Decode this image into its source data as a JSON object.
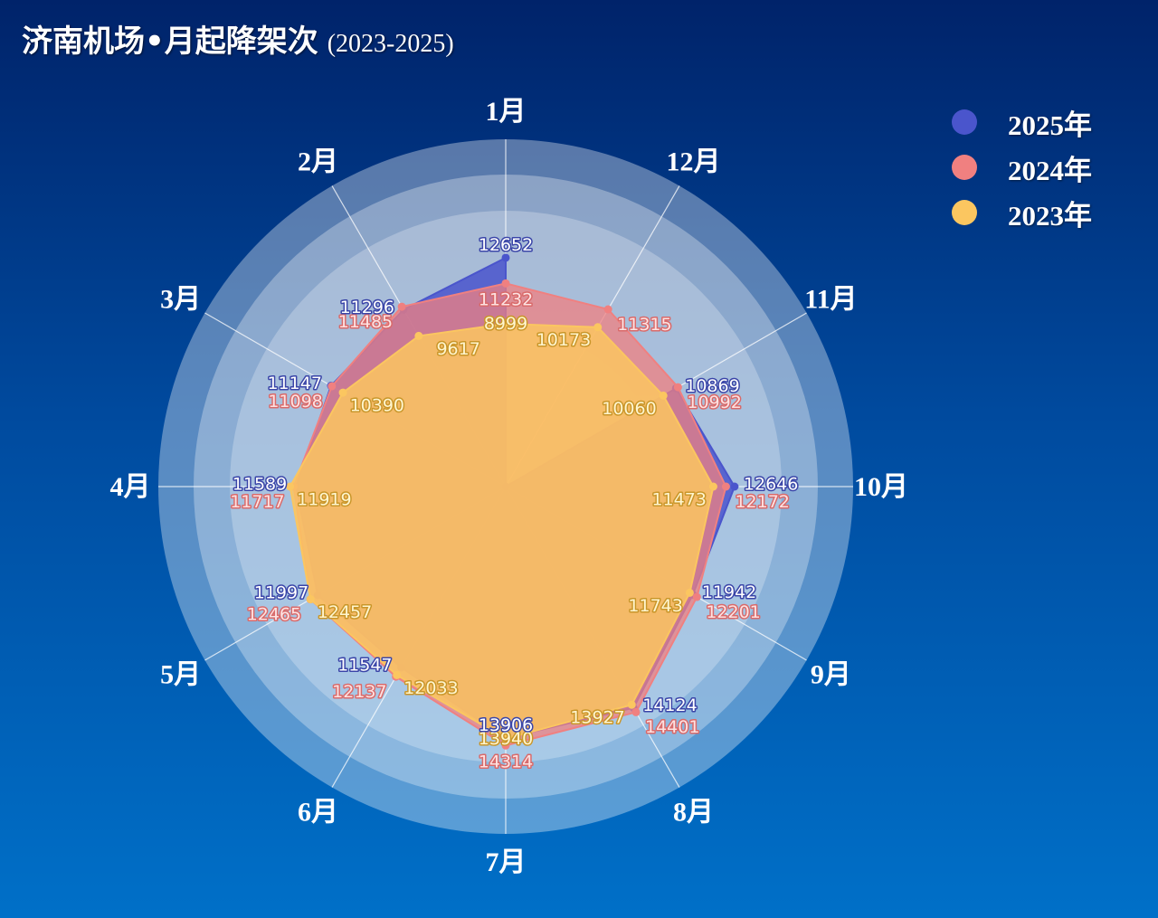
{
  "title": {
    "main": "济南机场•月起降架次",
    "sub": "(2023-2025)"
  },
  "watermark": "",
  "colors": {
    "y2025": "#4a55cc",
    "y2024": "#f08080",
    "y2023": "#fbc660"
  },
  "legend": [
    {
      "label": "2025年",
      "color": "#4a55cc"
    },
    {
      "label": "2024年",
      "color": "#f08080"
    },
    {
      "label": "2023年",
      "color": "#fbc660"
    }
  ],
  "chart_data": {
    "type": "radar",
    "categories": [
      "1月",
      "12月",
      "11月",
      "10月",
      "9月",
      "8月",
      "7月",
      "6月",
      "5月",
      "4月",
      "3月",
      "2月"
    ],
    "series": [
      {
        "name": "2023年",
        "values": [
          8999,
          10173,
          10060,
          11473,
          11743,
          13927,
          13940,
          12033,
          12457,
          11919,
          10390,
          9617
        ]
      },
      {
        "name": "2024年",
        "values": [
          11232,
          11315,
          10992,
          12172,
          12201,
          14401,
          14314,
          12137,
          12465,
          11717,
          11098,
          11485
        ]
      },
      {
        "name": "2025年",
        "values": [
          12652,
          null,
          10869,
          12646,
          11942,
          14124,
          13906,
          11547,
          11997,
          11589,
          11147,
          11296
        ]
      }
    ]
  }
}
